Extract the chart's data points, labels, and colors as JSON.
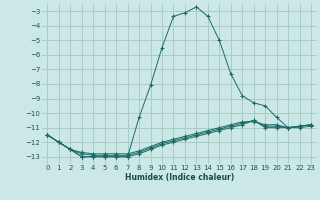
{
  "xlabel": "Humidex (Indice chaleur)",
  "bg_color": "#cce8e6",
  "grid_color": "#a8ccc9",
  "line_color": "#1a6b65",
  "xlim": [
    -0.5,
    23.5
  ],
  "ylim": [
    -13.5,
    -2.5
  ],
  "xticks": [
    0,
    1,
    2,
    3,
    4,
    5,
    6,
    7,
    8,
    9,
    10,
    11,
    12,
    13,
    14,
    15,
    16,
    17,
    18,
    19,
    20,
    21,
    22,
    23
  ],
  "yticks": [
    -13,
    -12,
    -11,
    -10,
    -9,
    -8,
    -7,
    -6,
    -5,
    -4,
    -3
  ],
  "series": [
    {
      "x": [
        0,
        1,
        2,
        3,
        4,
        5,
        6,
        7,
        8,
        9,
        10,
        11,
        12,
        13,
        14,
        15,
        16,
        17,
        18,
        19,
        20,
        21,
        22,
        23
      ],
      "y": [
        -11.5,
        -12.0,
        -12.5,
        -13.0,
        -13.0,
        -13.0,
        -13.0,
        -13.0,
        -10.3,
        -8.1,
        -5.5,
        -3.35,
        -3.1,
        -2.7,
        -3.35,
        -5.0,
        -7.3,
        -8.8,
        -9.3,
        -9.5,
        -10.3,
        -11.0,
        -11.0,
        -10.9
      ]
    },
    {
      "x": [
        0,
        1,
        2,
        3,
        4,
        5,
        6,
        7,
        8,
        9,
        10,
        11,
        12,
        13,
        14,
        15,
        16,
        17,
        18,
        19,
        20,
        21,
        22,
        23
      ],
      "y": [
        -11.5,
        -12.0,
        -12.5,
        -12.7,
        -12.8,
        -12.8,
        -12.8,
        -12.8,
        -12.6,
        -12.3,
        -12.0,
        -11.8,
        -11.6,
        -11.4,
        -11.2,
        -11.0,
        -10.8,
        -10.6,
        -10.6,
        -10.8,
        -10.8,
        -11.0,
        -10.9,
        -10.8
      ]
    },
    {
      "x": [
        0,
        1,
        2,
        3,
        4,
        5,
        6,
        7,
        8,
        9,
        10,
        11,
        12,
        13,
        14,
        15,
        16,
        17,
        18,
        19,
        20,
        21,
        22,
        23
      ],
      "y": [
        -11.5,
        -12.0,
        -12.5,
        -12.8,
        -12.9,
        -12.9,
        -12.9,
        -12.9,
        -12.7,
        -12.4,
        -12.1,
        -11.9,
        -11.7,
        -11.5,
        -11.3,
        -11.1,
        -10.9,
        -10.7,
        -10.5,
        -10.9,
        -10.9,
        -11.0,
        -10.9,
        -10.8
      ]
    },
    {
      "x": [
        0,
        1,
        2,
        3,
        4,
        5,
        6,
        7,
        8,
        9,
        10,
        11,
        12,
        13,
        14,
        15,
        16,
        17,
        18,
        19,
        20,
        21,
        22,
        23
      ],
      "y": [
        -11.5,
        -12.0,
        -12.5,
        -13.0,
        -13.0,
        -13.0,
        -13.0,
        -13.0,
        -12.8,
        -12.5,
        -12.2,
        -12.0,
        -11.8,
        -11.6,
        -11.4,
        -11.2,
        -11.0,
        -10.8,
        -10.5,
        -11.0,
        -11.0,
        -11.0,
        -10.9,
        -10.8
      ]
    }
  ]
}
